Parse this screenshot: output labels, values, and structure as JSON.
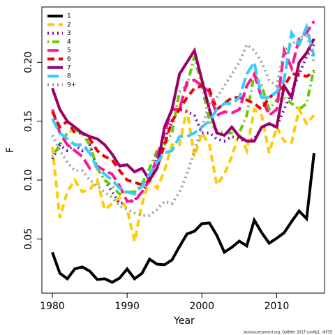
{
  "chart_data": {
    "type": "line",
    "x_label": "Year",
    "y_label": "F",
    "footnote": "stockassessment.org, GoBHer 2017 config1, r8535",
    "x": [
      1980,
      1981,
      1982,
      1983,
      1984,
      1985,
      1986,
      1987,
      1988,
      1989,
      1990,
      1991,
      1992,
      1993,
      1994,
      1995,
      1996,
      1997,
      1998,
      1999,
      2000,
      2001,
      2002,
      2003,
      2004,
      2005,
      2006,
      2007,
      2008,
      2009,
      2010,
      2011,
      2012,
      2013,
      2014,
      2015
    ],
    "xlim": [
      1978.6,
      2016.4
    ],
    "xticks": [
      1980,
      1990,
      2000,
      2010
    ],
    "ylim": [
      0.004,
      0.247
    ],
    "yticks": [
      0.05,
      {
        "value": 0.1,
        "label": "0.10"
      },
      0.15,
      {
        "value": 0.2,
        "label": "0.20"
      }
    ],
    "legend": "top-left",
    "series": [
      {
        "name": "1",
        "color": "#000000",
        "dash": "solid",
        "values": [
          0.0387,
          0.0209,
          0.0162,
          0.0245,
          0.0263,
          0.0227,
          0.0156,
          0.0162,
          0.0132,
          0.0168,
          0.0245,
          0.0162,
          0.0209,
          0.0328,
          0.0286,
          0.0281,
          0.0322,
          0.0435,
          0.0542,
          0.0565,
          0.063,
          0.0636,
          0.053,
          0.0387,
          0.0429,
          0.0482,
          0.0441,
          0.066,
          0.0553,
          0.0464,
          0.0506,
          0.0553,
          0.0648,
          0.0737,
          0.0672,
          0.123
        ]
      },
      {
        "name": "2",
        "color": "#FFCC00",
        "dash": "dashed",
        "values": [
          0.128,
          0.068,
          0.09,
          0.1,
          0.09,
          0.092,
          0.1,
          0.075,
          0.08,
          0.085,
          0.075,
          0.048,
          0.08,
          0.1,
          0.093,
          0.108,
          0.13,
          0.13,
          0.16,
          0.12,
          0.14,
          0.13,
          0.096,
          0.105,
          0.12,
          0.14,
          0.125,
          0.16,
          0.155,
          0.123,
          0.145,
          0.133,
          0.132,
          0.16,
          0.148,
          0.155
        ]
      },
      {
        "name": "3",
        "color": "#6A0DAD",
        "dash": "dotted",
        "values": [
          0.118,
          0.13,
          0.125,
          0.13,
          0.125,
          0.13,
          0.11,
          0.1,
          0.09,
          0.08,
          0.082,
          0.083,
          0.09,
          0.1,
          0.12,
          0.135,
          0.15,
          0.16,
          0.158,
          0.155,
          0.14,
          0.14,
          0.135,
          0.133,
          0.137,
          0.135,
          0.133,
          0.135,
          0.145,
          0.147,
          0.145,
          0.16,
          0.175,
          0.19,
          0.205,
          0.215
        ]
      },
      {
        "name": "4",
        "color": "#66CC00",
        "dash": "dotdash",
        "values": [
          0.12,
          0.13,
          0.14,
          0.143,
          0.14,
          0.13,
          0.11,
          0.1,
          0.095,
          0.088,
          0.09,
          0.09,
          0.097,
          0.11,
          0.125,
          0.13,
          0.14,
          0.175,
          0.18,
          0.205,
          0.18,
          0.15,
          0.142,
          0.14,
          0.14,
          0.14,
          0.155,
          0.19,
          0.18,
          0.16,
          0.168,
          0.17,
          0.165,
          0.16,
          0.165,
          0.195
        ]
      },
      {
        "name": "5",
        "color": "#FF1493",
        "dash": "longdash",
        "values": [
          0.16,
          0.14,
          0.13,
          0.125,
          0.12,
          0.11,
          0.112,
          0.108,
          0.105,
          0.095,
          0.082,
          0.082,
          0.09,
          0.1,
          0.12,
          0.14,
          0.16,
          0.16,
          0.183,
          0.185,
          0.18,
          0.175,
          0.155,
          0.158,
          0.157,
          0.16,
          0.18,
          0.19,
          0.17,
          0.155,
          0.16,
          0.21,
          0.195,
          0.22,
          0.225,
          0.235
        ]
      },
      {
        "name": "6",
        "color": "#EE0000",
        "dash": "dashed",
        "values": [
          0.158,
          0.145,
          0.15,
          0.14,
          0.14,
          0.135,
          0.125,
          0.12,
          0.117,
          0.108,
          0.1,
          0.098,
          0.096,
          0.1,
          0.11,
          0.13,
          0.15,
          0.16,
          0.17,
          0.178,
          0.18,
          0.177,
          0.16,
          0.165,
          0.17,
          0.17,
          0.168,
          0.165,
          0.16,
          0.17,
          0.175,
          0.18,
          0.19,
          0.19,
          0.188,
          0.192
        ]
      },
      {
        "name": "7",
        "color": "#990066",
        "dash": "solid",
        "values": [
          0.178,
          0.16,
          0.15,
          0.145,
          0.14,
          0.137,
          0.135,
          0.13,
          0.122,
          0.112,
          0.113,
          0.107,
          0.11,
          0.1,
          0.11,
          0.145,
          0.16,
          0.19,
          0.2,
          0.21,
          0.185,
          0.16,
          0.14,
          0.138,
          0.145,
          0.137,
          0.133,
          0.133,
          0.145,
          0.148,
          0.145,
          0.18,
          0.17,
          0.2,
          0.208,
          0.22
        ]
      },
      {
        "name": "8",
        "color": "#33CCFF",
        "dash": "longdash",
        "values": [
          0.152,
          0.14,
          0.135,
          0.13,
          0.13,
          0.123,
          0.11,
          0.105,
          0.1,
          0.093,
          0.09,
          0.088,
          0.095,
          0.105,
          0.115,
          0.123,
          0.125,
          0.137,
          0.137,
          0.14,
          0.145,
          0.15,
          0.16,
          0.165,
          0.165,
          0.17,
          0.19,
          0.2,
          0.17,
          0.17,
          0.175,
          0.185,
          0.225,
          0.215,
          0.23,
          0.205
        ]
      },
      {
        "name": "9+",
        "color": "#999999",
        "dash": "dotted",
        "values": [
          0.138,
          0.125,
          0.115,
          0.108,
          0.108,
          0.1,
          0.095,
          0.09,
          0.085,
          0.078,
          0.075,
          0.072,
          0.07,
          0.07,
          0.075,
          0.082,
          0.08,
          0.09,
          0.105,
          0.125,
          0.145,
          0.165,
          0.17,
          0.18,
          0.19,
          0.2,
          0.215,
          0.21,
          0.2,
          0.185,
          0.18,
          0.21,
          0.215,
          0.22,
          0.225,
          0.2
        ]
      }
    ]
  }
}
